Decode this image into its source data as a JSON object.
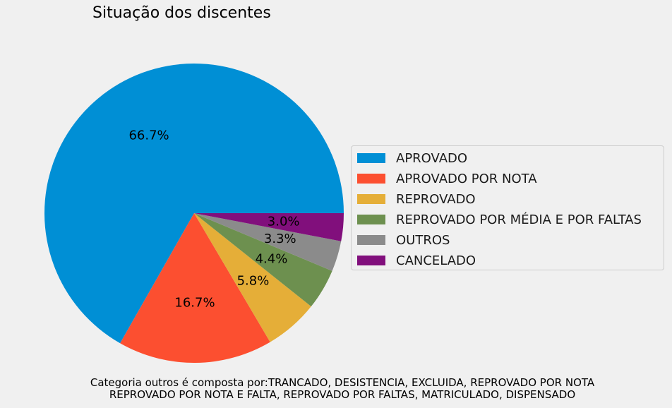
{
  "chart_data": {
    "type": "pie",
    "title": "Situação dos discentes",
    "start_angle_deg": 0,
    "direction": "counterclockwise",
    "slices": [
      {
        "label": "APROVADO",
        "value": 66.7,
        "pct_label": "66.7%",
        "color": "#008fd5"
      },
      {
        "label": "APROVADO POR NOTA",
        "value": 16.7,
        "pct_label": "16.7%",
        "color": "#fc4f30"
      },
      {
        "label": "REPROVADO",
        "value": 5.8,
        "pct_label": "5.8%",
        "color": "#e5ae38"
      },
      {
        "label": "REPROVADO POR MÉDIA E POR FALTAS",
        "value": 4.4,
        "pct_label": "4.4%",
        "color": "#6d904f"
      },
      {
        "label": "OUTROS",
        "value": 3.3,
        "pct_label": "3.3%",
        "color": "#8b8b8b"
      },
      {
        "label": "CANCELADO",
        "value": 3.0,
        "pct_label": "3.0%",
        "color": "#810f7c"
      }
    ],
    "legend_position": "right"
  },
  "footnote": {
    "line1": "Categoria outros é composta por:TRANCADO, DESISTENCIA, EXCLUIDA, REPROVADO POR NOTA",
    "line2": "REPROVADO POR NOTA E FALTA, REPROVADO POR FALTAS, MATRICULADO, DISPENSADO"
  }
}
